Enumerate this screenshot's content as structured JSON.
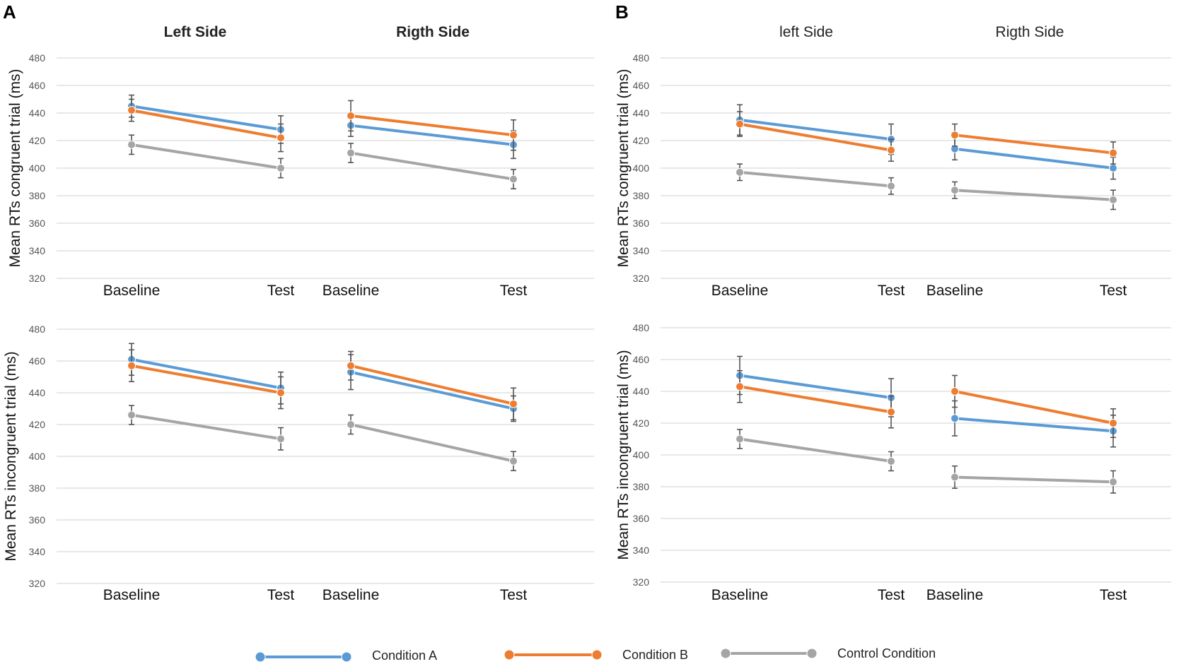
{
  "panel_labels": [
    "A",
    "B"
  ],
  "legend": [
    {
      "name": "Condition A",
      "color": "#5b9bd5"
    },
    {
      "name": "Condition B",
      "color": "#ed7d31"
    },
    {
      "name": "Control Condition",
      "color": "#a5a5a5"
    }
  ],
  "chart_data": [
    {
      "type": "line",
      "panel": "A",
      "position": "top",
      "ylabel": "Mean RTs congruent trial (ms)",
      "ylim": [
        320,
        480
      ],
      "yticks": [
        320,
        340,
        360,
        380,
        400,
        420,
        440,
        460,
        480
      ],
      "title_bold": true,
      "groups": [
        {
          "title": "Left Side",
          "categories": [
            "Baseline",
            "Test"
          ],
          "series": [
            {
              "name": "Condition A",
              "values": [
                445,
                428
              ],
              "errors": [
                8,
                10
              ]
            },
            {
              "name": "Condition B",
              "values": [
                442,
                422
              ],
              "errors": [
                8,
                10
              ]
            },
            {
              "name": "Control Condition",
              "values": [
                417,
                400
              ],
              "errors": [
                7,
                7
              ]
            }
          ]
        },
        {
          "title": "Rigth Side",
          "categories": [
            "Baseline",
            "Test"
          ],
          "series": [
            {
              "name": "Condition A",
              "values": [
                431,
                417
              ],
              "errors": [
                8,
                10
              ]
            },
            {
              "name": "Condition B",
              "values": [
                438,
                424
              ],
              "errors": [
                11,
                11
              ]
            },
            {
              "name": "Control Condition",
              "values": [
                411,
                392
              ],
              "errors": [
                7,
                7
              ]
            }
          ]
        }
      ]
    },
    {
      "type": "line",
      "panel": "A",
      "position": "bottom",
      "ylabel": "Mean RTs incongruent trial (ms)",
      "ylim": [
        320,
        480
      ],
      "yticks": [
        320,
        340,
        360,
        380,
        400,
        420,
        440,
        460,
        480
      ],
      "groups": [
        {
          "title": "",
          "categories": [
            "Baseline",
            "Test"
          ],
          "series": [
            {
              "name": "Condition A",
              "values": [
                461,
                443
              ],
              "errors": [
                10,
                10
              ]
            },
            {
              "name": "Condition B",
              "values": [
                457,
                440
              ],
              "errors": [
                10,
                10
              ]
            },
            {
              "name": "Control Condition",
              "values": [
                426,
                411
              ],
              "errors": [
                6,
                7
              ]
            }
          ]
        },
        {
          "title": "",
          "categories": [
            "Baseline",
            "Test"
          ],
          "series": [
            {
              "name": "Condition A",
              "values": [
                453,
                430
              ],
              "errors": [
                11,
                8
              ]
            },
            {
              "name": "Condition B",
              "values": [
                457,
                433
              ],
              "errors": [
                9,
                10
              ]
            },
            {
              "name": "Control Condition",
              "values": [
                420,
                397
              ],
              "errors": [
                6,
                6
              ]
            }
          ]
        }
      ]
    },
    {
      "type": "line",
      "panel": "B",
      "position": "top",
      "ylabel": "Mean RTs congruent trial (ms)",
      "ylim": [
        320,
        480
      ],
      "yticks": [
        320,
        340,
        360,
        380,
        400,
        420,
        440,
        460,
        480
      ],
      "title_bold": false,
      "groups": [
        {
          "title": "left Side",
          "categories": [
            "Baseline",
            "Test"
          ],
          "series": [
            {
              "name": "Condition A",
              "values": [
                435,
                421
              ],
              "errors": [
                11,
                11
              ]
            },
            {
              "name": "Condition B",
              "values": [
                432,
                413
              ],
              "errors": [
                9,
                8
              ]
            },
            {
              "name": "Control Condition",
              "values": [
                397,
                387
              ],
              "errors": [
                6,
                6
              ]
            }
          ]
        },
        {
          "title": "Rigth Side",
          "categories": [
            "Baseline",
            "Test"
          ],
          "series": [
            {
              "name": "Condition A",
              "values": [
                414,
                400
              ],
              "errors": [
                8,
                8
              ]
            },
            {
              "name": "Condition B",
              "values": [
                424,
                411
              ],
              "errors": [
                8,
                8
              ]
            },
            {
              "name": "Control Condition",
              "values": [
                384,
                377
              ],
              "errors": [
                6,
                7
              ]
            }
          ]
        }
      ]
    },
    {
      "type": "line",
      "panel": "B",
      "position": "bottom",
      "ylabel": "Mean RTs incongruent trial (ms)",
      "ylim": [
        320,
        480
      ],
      "yticks": [
        320,
        340,
        360,
        380,
        400,
        420,
        440,
        460,
        480
      ],
      "groups": [
        {
          "title": "",
          "categories": [
            "Baseline",
            "Test"
          ],
          "series": [
            {
              "name": "Condition A",
              "values": [
                450,
                436
              ],
              "errors": [
                12,
                12
              ]
            },
            {
              "name": "Condition B",
              "values": [
                443,
                427
              ],
              "errors": [
                10,
                10
              ]
            },
            {
              "name": "Control Condition",
              "values": [
                410,
                396
              ],
              "errors": [
                6,
                6
              ]
            }
          ]
        },
        {
          "title": "",
          "categories": [
            "Baseline",
            "Test"
          ],
          "series": [
            {
              "name": "Condition A",
              "values": [
                423,
                415
              ],
              "errors": [
                11,
                10
              ]
            },
            {
              "name": "Condition B",
              "values": [
                440,
                420
              ],
              "errors": [
                10,
                9
              ]
            },
            {
              "name": "Control Condition",
              "values": [
                386,
                383
              ],
              "errors": [
                7,
                7
              ]
            }
          ]
        }
      ]
    }
  ]
}
